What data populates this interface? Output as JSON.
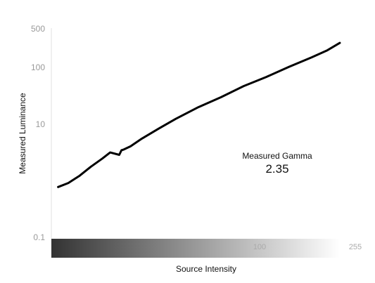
{
  "chart_data": {
    "type": "line",
    "xlabel": "Source Intensity",
    "ylabel": "Measured Luminance",
    "yscale": "log",
    "ylim": [
      0.1,
      500
    ],
    "xlim": [
      0,
      255
    ],
    "y_ticks": [
      "500",
      "100",
      "10",
      "0.1"
    ],
    "y_tick_values": [
      500,
      100,
      10,
      0.1
    ],
    "x_ticks": [
      "100",
      "255"
    ],
    "x_tick_values": [
      100,
      255
    ],
    "grid": false,
    "gradient_bar": {
      "from": "#333333",
      "to": "#ffffff"
    },
    "annotation": {
      "label": "Measured Gamma",
      "value": "2.35"
    },
    "series": [
      {
        "color": "#000000",
        "x": [
          6,
          15,
          25,
          35,
          45,
          52,
          60,
          62,
          64,
          70,
          80,
          95,
          110,
          130,
          150,
          170,
          190,
          210,
          230,
          244,
          255
        ],
        "y": [
          0.79,
          0.93,
          1.25,
          1.8,
          2.5,
          3.2,
          2.9,
          3.5,
          3.6,
          4.1,
          5.6,
          8.4,
          12.5,
          20,
          30,
          47,
          68,
          102,
          150,
          200,
          270
        ]
      }
    ]
  }
}
